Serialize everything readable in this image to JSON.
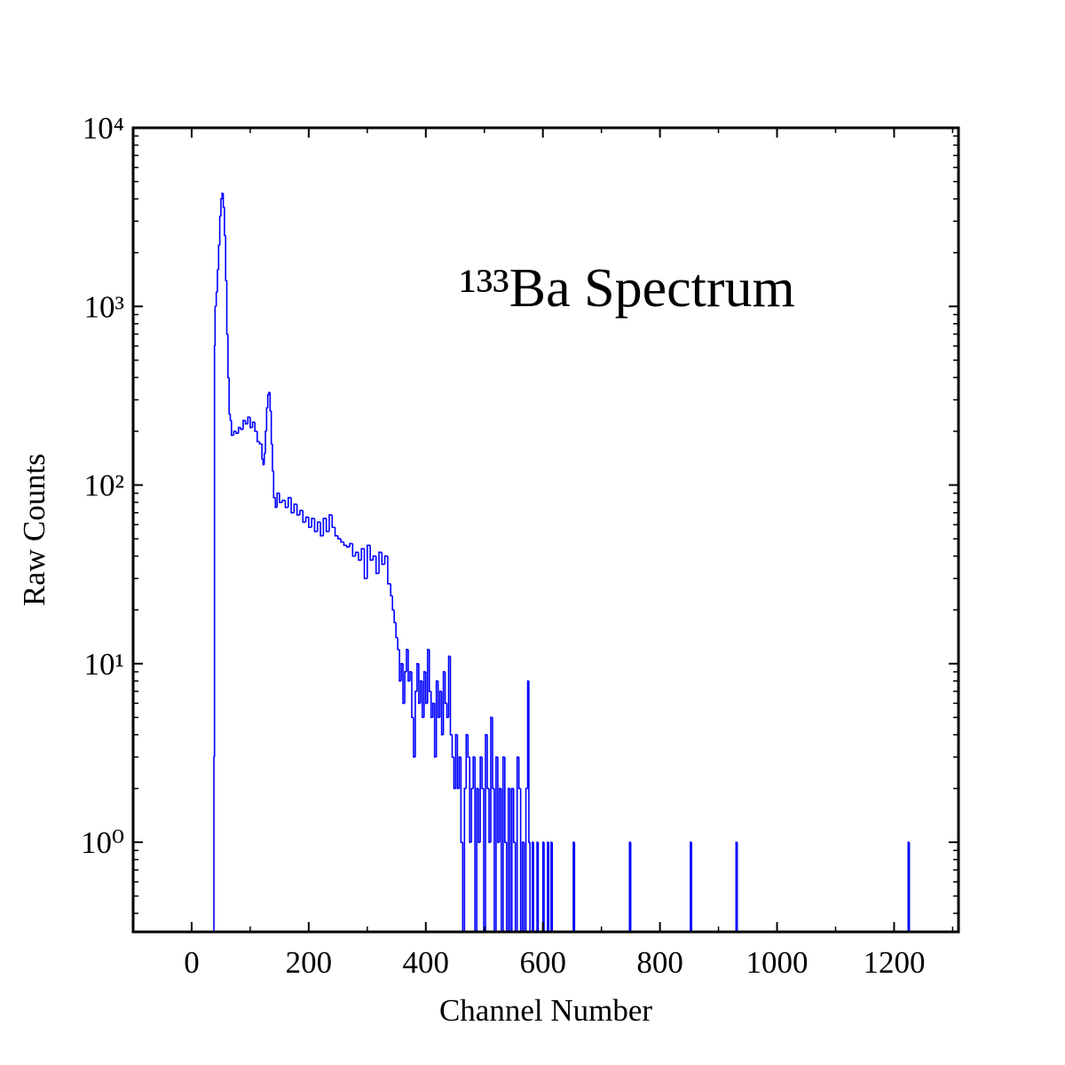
{
  "chart_data": {
    "type": "step",
    "annotation": "¹³³Ba Spectrum",
    "xlabel": "Channel Number",
    "ylabel": "Raw Counts",
    "yscale": "log",
    "color": "#0000ff",
    "xlim": [
      -100,
      1310
    ],
    "ylim": [
      0.315,
      10000
    ],
    "xticks": [
      0,
      200,
      400,
      600,
      800,
      1000,
      1200
    ],
    "yticks": [
      {
        "value": 1,
        "label": "10⁰"
      },
      {
        "value": 10,
        "label": "10¹"
      },
      {
        "value": 100,
        "label": "10²"
      },
      {
        "value": 1000,
        "label": "10³"
      },
      {
        "value": 10000,
        "label": "10⁴"
      }
    ],
    "x": [
      35,
      38,
      39,
      40,
      42,
      44,
      46,
      48,
      50,
      52,
      54,
      56,
      58,
      60,
      62,
      64,
      66,
      68,
      72,
      76,
      80,
      84,
      88,
      92,
      96,
      100,
      104,
      108,
      112,
      116,
      120,
      122,
      124,
      126,
      128,
      130,
      132,
      134,
      136,
      138,
      140,
      143,
      146,
      150,
      155,
      160,
      165,
      170,
      175,
      180,
      185,
      190,
      195,
      200,
      205,
      210,
      215,
      220,
      225,
      230,
      235,
      240,
      245,
      250,
      255,
      260,
      265,
      270,
      275,
      280,
      285,
      290,
      295,
      300,
      305,
      310,
      315,
      320,
      325,
      330,
      335,
      340,
      343,
      346,
      349,
      352,
      355,
      358,
      361,
      364,
      367,
      370,
      373,
      376,
      379,
      382,
      385,
      388,
      391,
      394,
      397,
      400,
      403,
      406,
      409,
      412,
      415,
      418,
      421,
      424,
      427,
      430,
      433,
      436,
      439,
      442,
      445,
      448,
      451,
      454,
      457,
      460,
      463,
      466,
      469,
      472,
      475,
      478,
      481,
      484,
      487,
      490,
      493,
      496,
      499,
      502,
      505,
      508,
      511,
      514,
      517,
      520,
      523,
      526,
      529,
      532,
      535,
      538,
      541,
      544,
      547,
      550,
      553,
      556,
      559,
      562,
      565,
      568,
      571,
      574,
      576,
      578,
      582,
      584,
      590,
      592,
      600,
      602,
      608,
      610,
      614,
      616,
      652,
      654,
      748,
      750,
      852,
      854,
      930,
      932,
      1224,
      1226
    ],
    "values": [
      0,
      3,
      600,
      1000,
      1200,
      1600,
      2200,
      3200,
      4000,
      4300,
      3600,
      2500,
      1400,
      700,
      400,
      250,
      230,
      190,
      200,
      195,
      210,
      205,
      230,
      220,
      240,
      210,
      225,
      200,
      175,
      170,
      140,
      130,
      150,
      200,
      270,
      320,
      330,
      260,
      170,
      120,
      85,
      75,
      90,
      80,
      82,
      75,
      85,
      70,
      78,
      68,
      72,
      62,
      66,
      58,
      65,
      55,
      62,
      52,
      65,
      55,
      68,
      58,
      52,
      50,
      48,
      46,
      45,
      47,
      40,
      42,
      38,
      44,
      30,
      46,
      38,
      40,
      32,
      42,
      36,
      40,
      28,
      24,
      20,
      17,
      14,
      12,
      8,
      10,
      6,
      9,
      12,
      8,
      9,
      5,
      3,
      7,
      10,
      6,
      8,
      5,
      9,
      6,
      12,
      7,
      5,
      6,
      3,
      8,
      5,
      7,
      4,
      9,
      6,
      5,
      11,
      4,
      3,
      2,
      4,
      2,
      3,
      1,
      0,
      2,
      4,
      3,
      1,
      2,
      3,
      0,
      2,
      1,
      3,
      2,
      0,
      4,
      2,
      1,
      5,
      2,
      0,
      3,
      1,
      2,
      0,
      3,
      1,
      0,
      2,
      0,
      2,
      1,
      0,
      3,
      2,
      0,
      1,
      0,
      2,
      8,
      1,
      0,
      1,
      0,
      1,
      0,
      1,
      0,
      1,
      0,
      1,
      0,
      1,
      0,
      1,
      0,
      1,
      0,
      1,
      0,
      1,
      0
    ]
  }
}
